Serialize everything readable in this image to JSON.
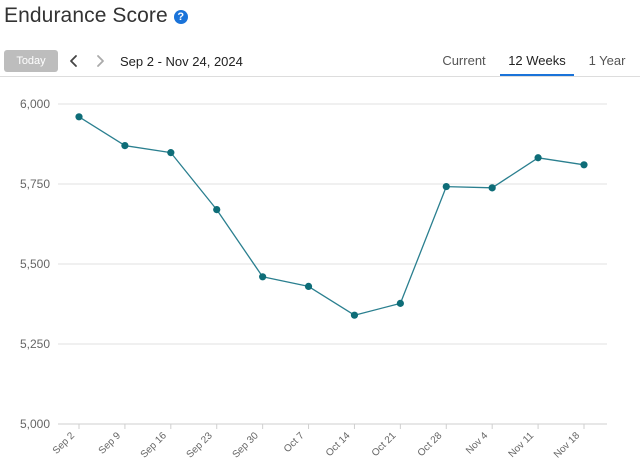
{
  "header": {
    "title": "Endurance Score",
    "help_icon": "help-question-icon"
  },
  "toolbar": {
    "today_label": "Today",
    "prev_icon": "chevron-left-icon",
    "next_icon": "chevron-right-icon",
    "date_range": "Sep 2 - Nov 24, 2024",
    "tabs": [
      {
        "label": "Current",
        "active": false
      },
      {
        "label": "12 Weeks",
        "active": true
      },
      {
        "label": "1 Year",
        "active": false
      }
    ]
  },
  "colors": {
    "line": "#2a7f8f",
    "point": "#0e6d78",
    "grid": "#e2e2e2",
    "active_tab": "#1a73d9",
    "today_button": "#bdbdbd"
  },
  "chart_data": {
    "type": "line",
    "title": "",
    "xlabel": "",
    "ylabel": "",
    "categories": [
      "Sep 2",
      "Sep 9",
      "Sep 16",
      "Sep 23",
      "Sep 30",
      "Oct 7",
      "Oct 14",
      "Oct 21",
      "Oct 28",
      "Nov 4",
      "Nov 11",
      "Nov 18"
    ],
    "series": [
      {
        "values": [
          5960,
          5870,
          5848,
          5670,
          5460,
          5430,
          5340,
          5377,
          5742,
          5738,
          5832,
          5810
        ]
      }
    ],
    "y_ticks": [
      "6,000",
      "5,750",
      "5,500",
      "5,250",
      "5,000"
    ],
    "y_tick_values": [
      6000,
      5750,
      5500,
      5250,
      5000
    ],
    "ylim": [
      5000,
      6000
    ],
    "grid": true,
    "legend": "none"
  }
}
